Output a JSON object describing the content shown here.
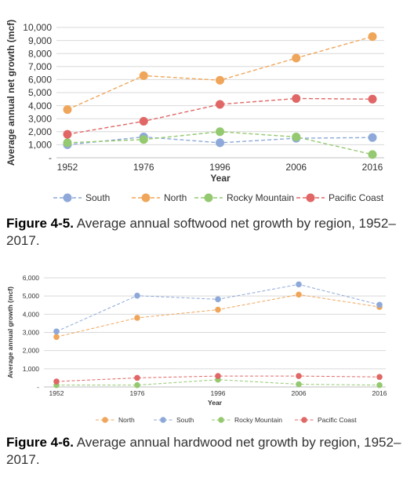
{
  "colors": {
    "South": "#8ea9d9",
    "North": "#f0a65a",
    "Rocky Mountain": "#94c970",
    "Pacific Coast": "#e06766",
    "grid": "#d9d9d9",
    "text": "#333333"
  },
  "chart_data": [
    {
      "type": "line",
      "title": "",
      "xlabel": "Year",
      "ylabel": "Average annual net growth (mcf)",
      "categories": [
        "1952",
        "1976",
        "1996",
        "2006",
        "2016"
      ],
      "yticks": [
        "-",
        "1,000",
        "2,000",
        "3,000",
        "4,000",
        "5,000",
        "6,000",
        "7,000",
        "8,000",
        "9,000",
        "10,000"
      ],
      "ylim": [
        0,
        10000
      ],
      "grid": true,
      "legend_position": "bottom",
      "series": [
        {
          "name": "South",
          "values": [
            1000,
            1600,
            1150,
            1500,
            1550
          ]
        },
        {
          "name": "North",
          "values": [
            3700,
            6300,
            5950,
            7650,
            9300
          ]
        },
        {
          "name": "Rocky Mountain",
          "values": [
            1150,
            1400,
            2000,
            1600,
            250
          ]
        },
        {
          "name": "Pacific Coast",
          "values": [
            1800,
            2800,
            4100,
            4550,
            4500
          ]
        }
      ]
    },
    {
      "type": "line",
      "title": "",
      "xlabel": "Year",
      "ylabel": "Average annual growth (mcf)",
      "categories": [
        "1952",
        "1976",
        "1996",
        "2006",
        "2016"
      ],
      "yticks": [
        "-",
        "1,000",
        "2,000",
        "3,000",
        "4,000",
        "5,000",
        "6,000"
      ],
      "ylim": [
        0,
        6000
      ],
      "grid": true,
      "legend_position": "bottom",
      "series": [
        {
          "name": "North",
          "values": [
            2750,
            3800,
            4250,
            5080,
            4400
          ]
        },
        {
          "name": "South",
          "values": [
            3050,
            5020,
            4820,
            5640,
            4520
          ]
        },
        {
          "name": "Rocky Mountain",
          "values": [
            100,
            100,
            400,
            150,
            100
          ]
        },
        {
          "name": "Pacific Coast",
          "values": [
            300,
            500,
            600,
            600,
            550
          ]
        }
      ]
    }
  ],
  "captions": [
    {
      "label": "Figure 4-5.",
      "text": " Average annual softwood net growth by region, 1952–2017."
    },
    {
      "label": "Figure 4-6.",
      "text": " Average annual hardwood net growth by region, 1952–2017."
    }
  ]
}
